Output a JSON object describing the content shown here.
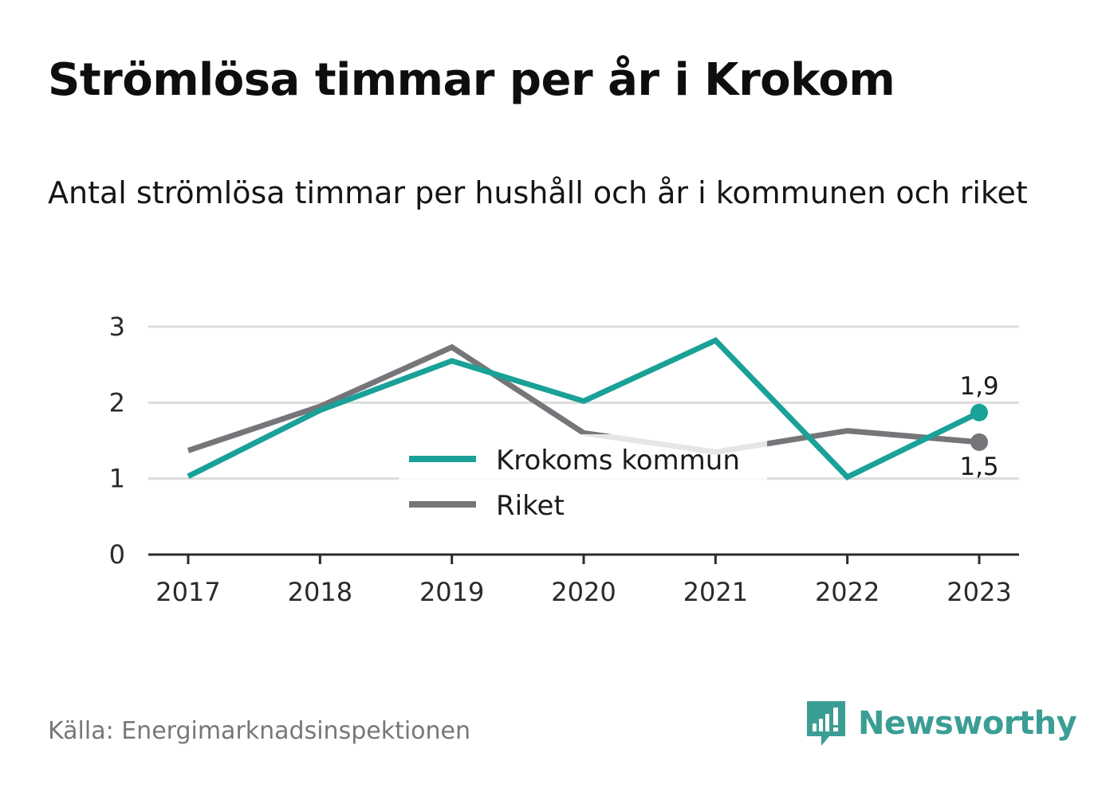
{
  "title": "Strömlösa timmar per år i Krokom",
  "subtitle": "Antal strömlösa timmar per hushåll och år i kommunen och riket",
  "source": "Källa: Energimarknadsinspektionen",
  "brand": {
    "name": "Newsworthy",
    "icon": "newsworthy-logo-icon",
    "color": "#3a9e94"
  },
  "chart_data": {
    "type": "line",
    "title": "",
    "xlabel": "",
    "ylabel": "",
    "x": [
      "2017",
      "2018",
      "2019",
      "2020",
      "2021",
      "2022",
      "2023"
    ],
    "ylim": [
      0,
      3
    ],
    "yticks": [
      "0",
      "1",
      "2",
      "3"
    ],
    "grid": true,
    "legend": "center",
    "series": [
      {
        "name": "Krokoms kommun",
        "color": "#1aa198",
        "values": [
          1.03,
          1.9,
          2.55,
          2.02,
          2.82,
          1.02,
          1.87
        ],
        "end_label": "1,9"
      },
      {
        "name": "Riket",
        "color": "#767579",
        "values": [
          1.37,
          1.95,
          2.73,
          1.6,
          1.35,
          1.63,
          1.48
        ],
        "end_label": "1,5"
      }
    ]
  }
}
